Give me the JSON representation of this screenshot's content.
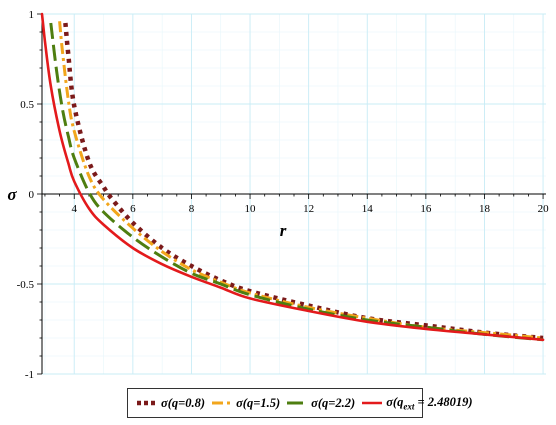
{
  "chart_data": {
    "type": "line",
    "title": "",
    "xlabel": "r",
    "ylabel": "σ",
    "xlim": [
      2.9,
      20.1
    ],
    "ylim": [
      -1,
      1
    ],
    "x_ticks": [
      4,
      6,
      8,
      10,
      12,
      14,
      16,
      18,
      20
    ],
    "y_ticks": [
      1,
      0.5,
      0,
      -0.5,
      -1
    ],
    "y_tick_labels": [
      "1",
      "0.5",
      "0",
      "-0.5",
      "-1"
    ],
    "grid": true,
    "legend_position": "bottom",
    "series": [
      {
        "name": "σ(q=0.8)",
        "legend_pre": "σ(q=0.8)",
        "legend_sub": "",
        "legend_post": "",
        "color": "#7b1a1a",
        "style": "dotted",
        "x": [
          3.7,
          3.8,
          4.0,
          4.5,
          5.0,
          5.3,
          6.0,
          7.0,
          8.0,
          9.0,
          10.0,
          12.0,
          14.0,
          16.0,
          18.0,
          20.0
        ],
        "y": [
          0.95,
          0.77,
          0.49,
          0.18,
          0.04,
          -0.03,
          -0.16,
          -0.3,
          -0.4,
          -0.48,
          -0.54,
          -0.62,
          -0.69,
          -0.73,
          -0.77,
          -0.8
        ]
      },
      {
        "name": "σ(q=1.5)",
        "legend_pre": "σ(q=1.5)",
        "legend_sub": "",
        "legend_post": "",
        "color": "#f2a61c",
        "style": "dashdot",
        "x": [
          3.5,
          3.6,
          3.8,
          4.0,
          4.5,
          5.0,
          6.0,
          7.0,
          8.0,
          9.0,
          10.0,
          12.0,
          14.0,
          16.0,
          18.0,
          20.0
        ],
        "y": [
          0.96,
          0.79,
          0.52,
          0.35,
          0.1,
          -0.03,
          -0.19,
          -0.32,
          -0.42,
          -0.49,
          -0.55,
          -0.63,
          -0.69,
          -0.74,
          -0.77,
          -0.8
        ]
      },
      {
        "name": "σ(q=2.2)",
        "legend_pre": "σ(q=2.2)",
        "legend_sub": "",
        "legend_post": "",
        "color": "#4e7e10",
        "style": "longdash",
        "x": [
          3.2,
          3.4,
          3.6,
          3.8,
          4.0,
          4.5,
          5.0,
          6.0,
          7.0,
          8.0,
          9.0,
          10.0,
          12.0,
          14.0,
          16.0,
          18.0,
          20.0
        ],
        "y": [
          0.95,
          0.68,
          0.47,
          0.32,
          0.2,
          0.01,
          -0.1,
          -0.24,
          -0.35,
          -0.44,
          -0.5,
          -0.56,
          -0.64,
          -0.7,
          -0.74,
          -0.78,
          -0.81
        ]
      },
      {
        "name": "σ(q_ext = 2.48019)",
        "legend_pre": "σ(q",
        "legend_sub": "ext",
        "legend_post": " = 2.48019)",
        "color": "#e31a1c",
        "style": "solid",
        "x": [
          2.9,
          3.0,
          3.2,
          3.5,
          3.8,
          4.0,
          4.5,
          5.0,
          6.0,
          7.0,
          8.0,
          9.0,
          10.0,
          12.0,
          14.0,
          16.0,
          18.0,
          20.0
        ],
        "y": [
          1.0,
          0.85,
          0.6,
          0.35,
          0.17,
          0.07,
          -0.08,
          -0.17,
          -0.3,
          -0.39,
          -0.46,
          -0.52,
          -0.58,
          -0.65,
          -0.71,
          -0.75,
          -0.78,
          -0.81
        ]
      }
    ]
  }
}
